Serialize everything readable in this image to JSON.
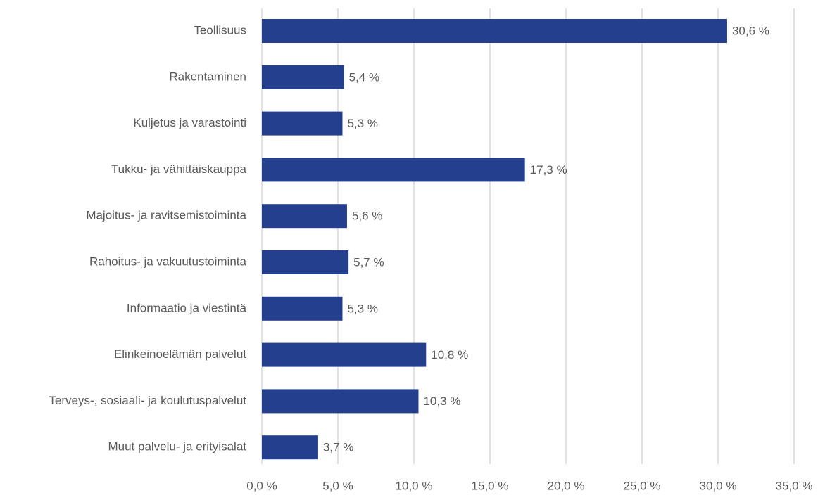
{
  "chart_data": {
    "type": "bar",
    "orientation": "horizontal",
    "categories": [
      "Teollisuus",
      "Rakentaminen",
      "Kuljetus ja varastointi",
      "Tukku- ja vähittäiskauppa",
      "Majoitus- ja ravitsemistoiminta",
      "Rahoitus- ja vakuutustoiminta",
      "Informaatio ja viestintä",
      "Elinkeinoelämän palvelut",
      "Terveys-, sosiaali- ja koulutuspalvelut",
      "Muut palvelu- ja erityisalat"
    ],
    "values": [
      30.6,
      5.4,
      5.3,
      17.3,
      5.6,
      5.7,
      5.3,
      10.8,
      10.3,
      3.7
    ],
    "value_labels": [
      "30,6 %",
      "5,4 %",
      "5,3 %",
      "17,3 %",
      "5,6 %",
      "5,7 %",
      "5,3 %",
      "10,8 %",
      "10,3 %",
      "3,7 %"
    ],
    "color": "#253f8f",
    "xlim": [
      0,
      35
    ],
    "xticks": [
      {
        "value": 0,
        "label": "0,0 %"
      },
      {
        "value": 5,
        "label": "5,0 %"
      },
      {
        "value": 10,
        "label": "10,0 %"
      },
      {
        "value": 15,
        "label": "15,0 %"
      },
      {
        "value": 20,
        "label": "20,0 %"
      },
      {
        "value": 25,
        "label": "25,0 %"
      },
      {
        "value": 30,
        "label": "30,0 %"
      },
      {
        "value": 35,
        "label": "35,0 %"
      }
    ],
    "grid": true
  }
}
